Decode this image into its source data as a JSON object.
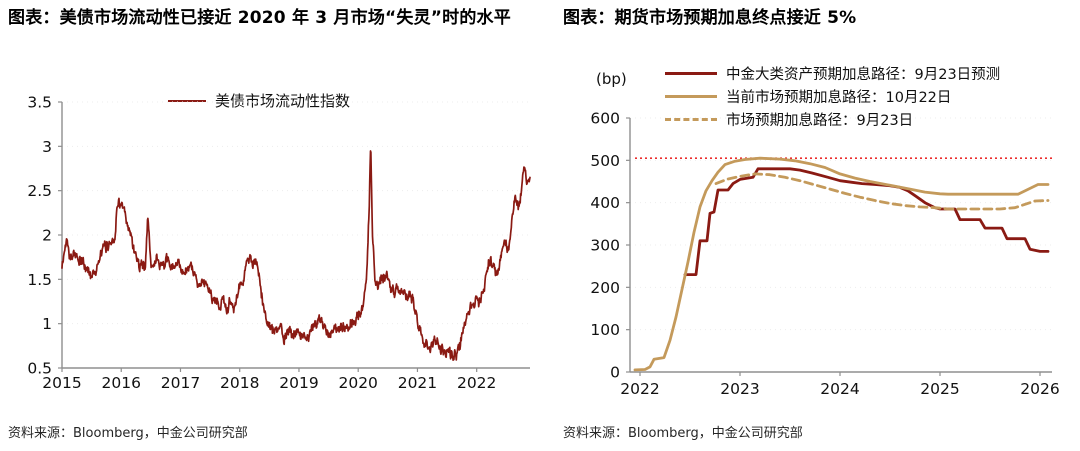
{
  "colors": {
    "maroon": "#8A1A13",
    "tan": "#C49A5B",
    "ref_red": "#EC2D2D",
    "axis_gray": "#8f8f8f",
    "tick_text": "#111111"
  },
  "chart_data": [
    {
      "id": "treasury_liquidity",
      "type": "line",
      "title": "图表：美债市场流动性已接近 2020 年 3 月市场“失灵”时的水平",
      "source": "资料来源：Bloomberg，中金公司研究部",
      "legend_position": "top-center",
      "grid": false,
      "xlim": [
        2015,
        2022.9
      ],
      "ylim": [
        0.5,
        3.5
      ],
      "xticks": [
        2015,
        2016,
        2017,
        2018,
        2019,
        2020,
        2021,
        2022
      ],
      "yticks": [
        0.5,
        1,
        1.5,
        2,
        2.5,
        3,
        3.5
      ],
      "series": [
        {
          "name": "美债市场流动性指数",
          "color": "#8A1A13",
          "style": "solid",
          "anchors": [
            [
              2015.0,
              1.62
            ],
            [
              2015.04,
              1.8
            ],
            [
              2015.08,
              2.0
            ],
            [
              2015.12,
              1.85
            ],
            [
              2015.2,
              1.78
            ],
            [
              2015.3,
              1.7
            ],
            [
              2015.4,
              1.63
            ],
            [
              2015.5,
              1.57
            ],
            [
              2015.6,
              1.66
            ],
            [
              2015.7,
              1.8
            ],
            [
              2015.8,
              1.92
            ],
            [
              2015.88,
              2.0
            ],
            [
              2015.95,
              2.45
            ],
            [
              2016.02,
              2.3
            ],
            [
              2016.1,
              2.1
            ],
            [
              2016.2,
              1.9
            ],
            [
              2016.3,
              1.72
            ],
            [
              2016.4,
              1.6
            ],
            [
              2016.45,
              2.17
            ],
            [
              2016.5,
              1.65
            ],
            [
              2016.6,
              1.7
            ],
            [
              2016.7,
              1.72
            ],
            [
              2016.8,
              1.65
            ],
            [
              2016.9,
              1.6
            ],
            [
              2017.0,
              1.62
            ],
            [
              2017.1,
              1.56
            ],
            [
              2017.2,
              1.52
            ],
            [
              2017.3,
              1.5
            ],
            [
              2017.4,
              1.42
            ],
            [
              2017.5,
              1.35
            ],
            [
              2017.6,
              1.32
            ],
            [
              2017.7,
              1.27
            ],
            [
              2017.8,
              1.2
            ],
            [
              2017.9,
              1.22
            ],
            [
              2017.97,
              1.35
            ],
            [
              2018.05,
              1.5
            ],
            [
              2018.12,
              1.68
            ],
            [
              2018.2,
              1.72
            ],
            [
              2018.28,
              1.65
            ],
            [
              2018.33,
              1.45
            ],
            [
              2018.4,
              1.18
            ],
            [
              2018.47,
              1.0
            ],
            [
              2018.55,
              0.92
            ],
            [
              2018.65,
              0.88
            ],
            [
              2018.75,
              0.87
            ],
            [
              2018.85,
              0.9
            ],
            [
              2018.95,
              0.92
            ],
            [
              2019.05,
              0.89
            ],
            [
              2019.15,
              0.88
            ],
            [
              2019.25,
              0.94
            ],
            [
              2019.35,
              1.02
            ],
            [
              2019.42,
              1.06
            ],
            [
              2019.5,
              0.95
            ],
            [
              2019.6,
              0.9
            ],
            [
              2019.7,
              0.92
            ],
            [
              2019.8,
              0.96
            ],
            [
              2019.9,
              1.0
            ],
            [
              2020.0,
              1.08
            ],
            [
              2020.08,
              1.22
            ],
            [
              2020.14,
              1.55
            ],
            [
              2020.18,
              2.2
            ],
            [
              2020.21,
              3.05
            ],
            [
              2020.24,
              2.0
            ],
            [
              2020.28,
              1.55
            ],
            [
              2020.33,
              1.5
            ],
            [
              2020.4,
              1.55
            ],
            [
              2020.5,
              1.48
            ],
            [
              2020.6,
              1.4
            ],
            [
              2020.7,
              1.33
            ],
            [
              2020.8,
              1.3
            ],
            [
              2020.9,
              1.27
            ],
            [
              2021.0,
              1.05
            ],
            [
              2021.08,
              0.88
            ],
            [
              2021.15,
              0.82
            ],
            [
              2021.25,
              0.77
            ],
            [
              2021.35,
              0.79
            ],
            [
              2021.45,
              0.73
            ],
            [
              2021.55,
              0.68
            ],
            [
              2021.62,
              0.66
            ],
            [
              2021.7,
              0.74
            ],
            [
              2021.8,
              0.92
            ],
            [
              2021.9,
              1.15
            ],
            [
              2021.97,
              1.33
            ],
            [
              2022.05,
              1.3
            ],
            [
              2022.12,
              1.45
            ],
            [
              2022.2,
              1.65
            ],
            [
              2022.27,
              1.6
            ],
            [
              2022.33,
              1.52
            ],
            [
              2022.4,
              1.7
            ],
            [
              2022.47,
              1.95
            ],
            [
              2022.53,
              1.9
            ],
            [
              2022.6,
              2.12
            ],
            [
              2022.66,
              2.38
            ],
            [
              2022.7,
              2.3
            ],
            [
              2022.75,
              2.52
            ],
            [
              2022.8,
              2.9
            ],
            [
              2022.83,
              2.75
            ],
            [
              2022.87,
              2.62
            ]
          ]
        }
      ]
    },
    {
      "id": "rate_hike_path",
      "type": "line",
      "title": "图表：期货市场预期加息终点接近 5%",
      "unit": "(bp)",
      "source": "资料来源：Bloomberg，中金公司研究部",
      "legend_position": "top-left",
      "grid": false,
      "xlim": [
        2021.9,
        2026.12
      ],
      "ylim": [
        0,
        600
      ],
      "xticks": [
        2022,
        2023,
        2024,
        2025,
        2026
      ],
      "yticks": [
        0,
        100,
        200,
        300,
        400,
        500,
        600
      ],
      "ref_line": {
        "y": 505,
        "color": "#EC2D2D",
        "style": "dotted"
      },
      "series": [
        {
          "name": "中金大类资产预期加息路径：9月23日预测",
          "color": "#8A1A13",
          "style": "solid",
          "points": [
            [
              2022.45,
              230
            ],
            [
              2022.56,
              230
            ],
            [
              2022.6,
              310
            ],
            [
              2022.67,
              310
            ],
            [
              2022.7,
              375
            ],
            [
              2022.74,
              378
            ],
            [
              2022.78,
              430
            ],
            [
              2022.88,
              430
            ],
            [
              2022.93,
              445
            ],
            [
              2023.0,
              455
            ],
            [
              2023.13,
              460
            ],
            [
              2023.18,
              480
            ],
            [
              2023.5,
              480
            ],
            [
              2023.6,
              477
            ],
            [
              2023.72,
              470
            ],
            [
              2023.88,
              460
            ],
            [
              2024.0,
              452
            ],
            [
              2024.12,
              448
            ],
            [
              2024.22,
              445
            ],
            [
              2024.35,
              443
            ],
            [
              2024.5,
              440
            ],
            [
              2024.6,
              436
            ],
            [
              2024.68,
              428
            ],
            [
              2024.76,
              415
            ],
            [
              2024.85,
              400
            ],
            [
              2024.95,
              388
            ],
            [
              2025.0,
              385
            ],
            [
              2025.15,
              385
            ],
            [
              2025.2,
              360
            ],
            [
              2025.4,
              360
            ],
            [
              2025.45,
              340
            ],
            [
              2025.62,
              340
            ],
            [
              2025.67,
              315
            ],
            [
              2025.85,
              315
            ],
            [
              2025.9,
              290
            ],
            [
              2026.0,
              285
            ],
            [
              2026.08,
              285
            ]
          ]
        },
        {
          "name": "当前市场预期加息路径：10月22日",
          "color": "#C49A5B",
          "style": "solid",
          "points": [
            [
              2021.95,
              5
            ],
            [
              2022.05,
              6
            ],
            [
              2022.1,
              12
            ],
            [
              2022.14,
              30
            ],
            [
              2022.24,
              34
            ],
            [
              2022.3,
              75
            ],
            [
              2022.36,
              130
            ],
            [
              2022.42,
              195
            ],
            [
              2022.48,
              260
            ],
            [
              2022.54,
              330
            ],
            [
              2022.6,
              390
            ],
            [
              2022.66,
              428
            ],
            [
              2022.72,
              452
            ],
            [
              2022.78,
              472
            ],
            [
              2022.85,
              490
            ],
            [
              2022.95,
              498
            ],
            [
              2023.05,
              502
            ],
            [
              2023.2,
              505
            ],
            [
              2023.4,
              503
            ],
            [
              2023.55,
              499
            ],
            [
              2023.7,
              492
            ],
            [
              2023.85,
              483
            ],
            [
              2024.0,
              468
            ],
            [
              2024.15,
              458
            ],
            [
              2024.3,
              450
            ],
            [
              2024.5,
              441
            ],
            [
              2024.7,
              432
            ],
            [
              2024.85,
              425
            ],
            [
              2025.0,
              421
            ],
            [
              2025.08,
              420
            ],
            [
              2025.78,
              420
            ],
            [
              2025.98,
              443
            ],
            [
              2026.08,
              443
            ]
          ]
        },
        {
          "name": "市场预期加息路径：9月23日",
          "color": "#C49A5B",
          "style": "dashed",
          "points": [
            [
              2022.76,
              445
            ],
            [
              2022.88,
              456
            ],
            [
              2023.0,
              462
            ],
            [
              2023.15,
              468
            ],
            [
              2023.3,
              466
            ],
            [
              2023.45,
              460
            ],
            [
              2023.6,
              452
            ],
            [
              2023.75,
              442
            ],
            [
              2023.9,
              432
            ],
            [
              2024.05,
              422
            ],
            [
              2024.2,
              413
            ],
            [
              2024.35,
              405
            ],
            [
              2024.5,
              398
            ],
            [
              2024.65,
              393
            ],
            [
              2024.8,
              390
            ],
            [
              2024.95,
              388
            ],
            [
              2025.08,
              385
            ],
            [
              2025.6,
              385
            ],
            [
              2025.75,
              388
            ],
            [
              2025.95,
              404
            ],
            [
              2026.08,
              405
            ]
          ]
        }
      ]
    }
  ]
}
